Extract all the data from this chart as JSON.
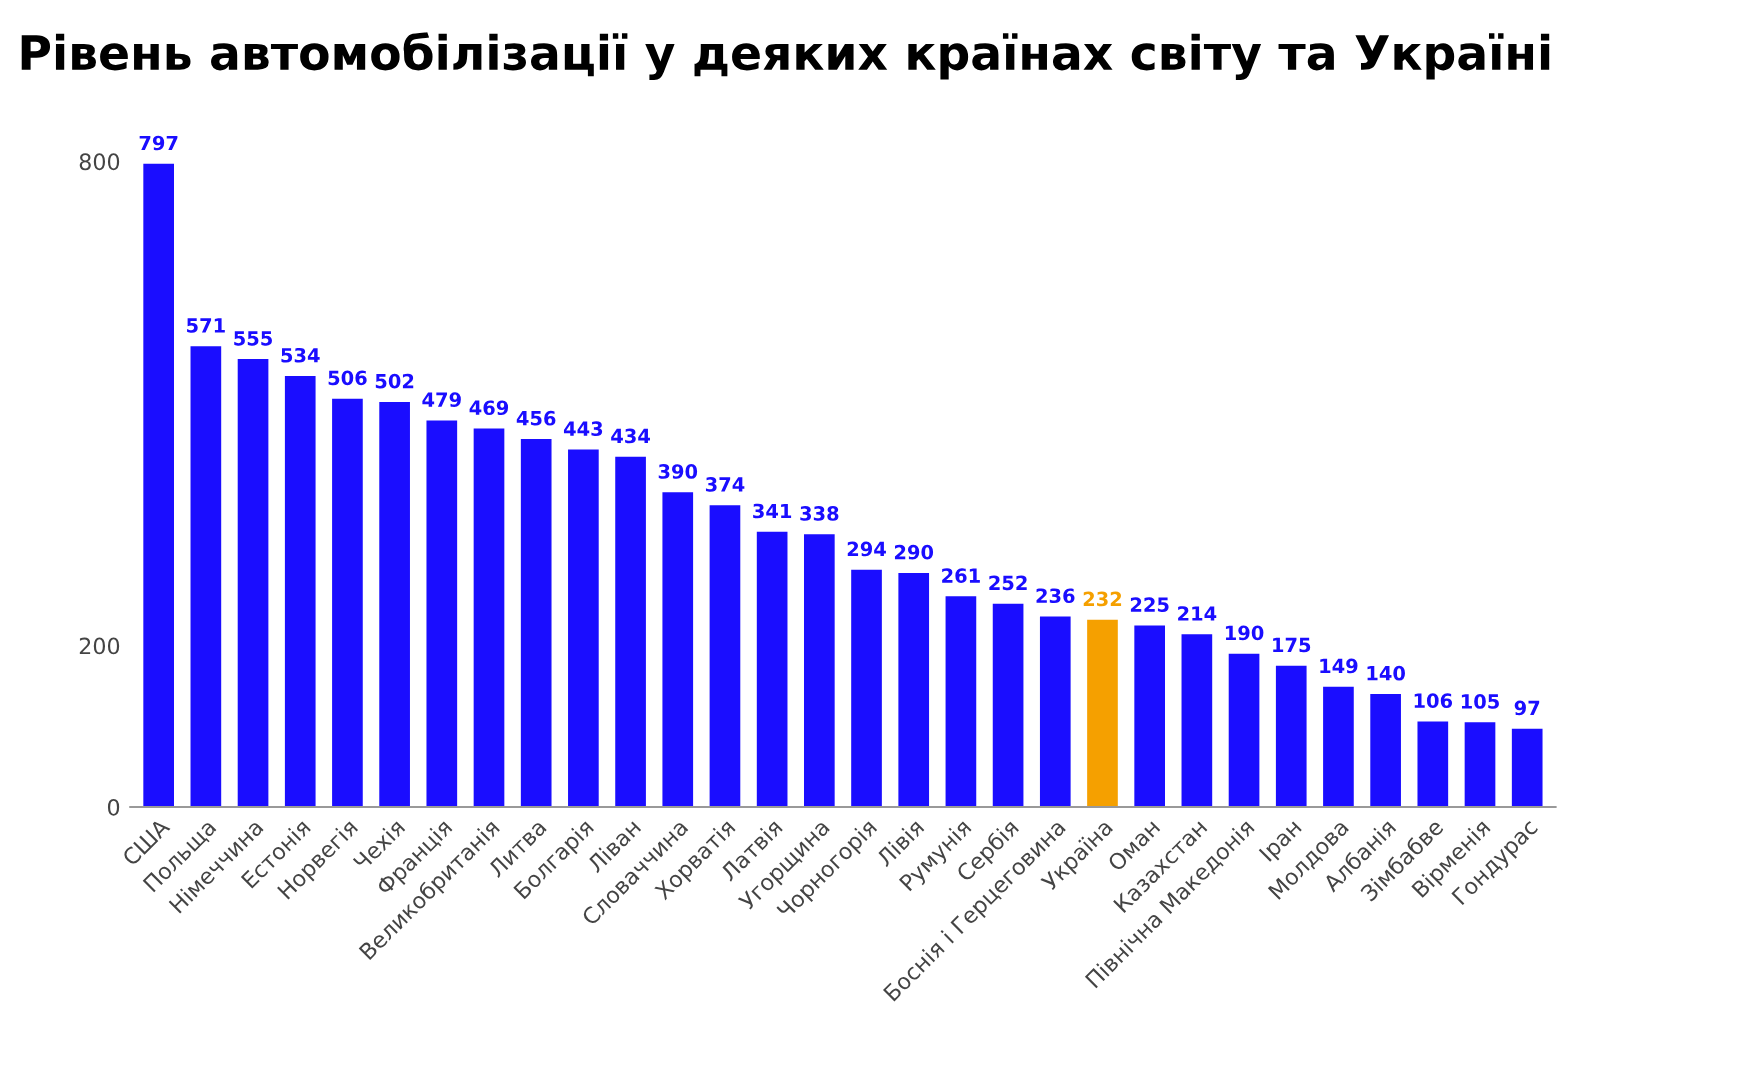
{
  "chart_data": {
    "type": "bar",
    "title": "Рівень автомобілізації у деяких країнах світу та Україні",
    "categories": [
      "США",
      "Польща",
      "Німеччина",
      "Естонія",
      "Норвегія",
      "Чехія",
      "Франція",
      "Великобританія",
      "Литва",
      "Болгарія",
      "Ліван",
      "Словаччина",
      "Хорватія",
      "Латвія",
      "Угорщина",
      "Чорногорія",
      "Лівія",
      "Румунія",
      "Сербія",
      "Боснія і Герцеговина",
      "Україна",
      "Оман",
      "Казахстан",
      "Північна Македонія",
      "Іран",
      "Молдова",
      "Албанія",
      "Зімбабве",
      "Вірменія",
      "Гондурас"
    ],
    "values": [
      797,
      571,
      555,
      534,
      506,
      502,
      479,
      469,
      456,
      443,
      434,
      390,
      374,
      341,
      338,
      294,
      290,
      261,
      252,
      236,
      232,
      225,
      214,
      190,
      175,
      149,
      140,
      106,
      105,
      97
    ],
    "colors": [
      "#1a0dff",
      "#1a0dff",
      "#1a0dff",
      "#1a0dff",
      "#1a0dff",
      "#1a0dff",
      "#1a0dff",
      "#1a0dff",
      "#1a0dff",
      "#1a0dff",
      "#1a0dff",
      "#1a0dff",
      "#1a0dff",
      "#1a0dff",
      "#1a0dff",
      "#1a0dff",
      "#1a0dff",
      "#1a0dff",
      "#1a0dff",
      "#1a0dff",
      "#f5a000",
      "#1a0dff",
      "#1a0dff",
      "#1a0dff",
      "#1a0dff",
      "#1a0dff",
      "#1a0dff",
      "#1a0dff",
      "#1a0dff",
      "#1a0dff"
    ],
    "ylim": [
      0,
      800
    ],
    "yticks": [
      0,
      200,
      800
    ],
    "grid": false,
    "data_labels": true
  }
}
